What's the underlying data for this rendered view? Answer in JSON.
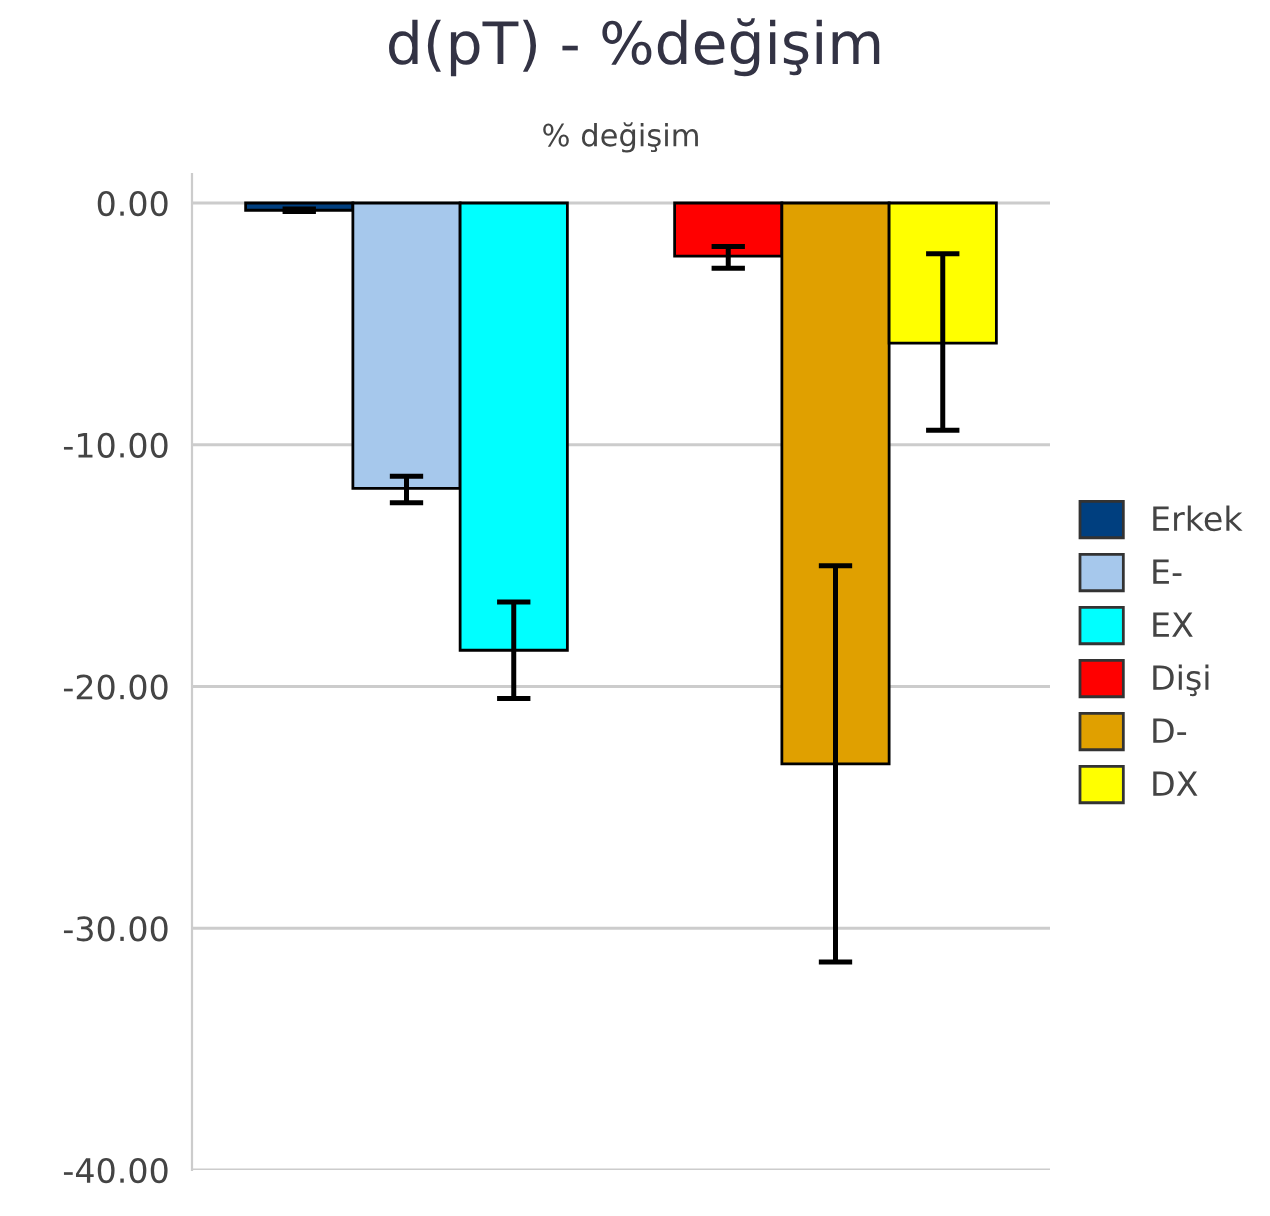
{
  "chart_data": {
    "type": "bar",
    "title": "d(pT) - %değişim",
    "subtitle": "% değişim",
    "categories": [
      null,
      null
    ],
    "series": [
      {
        "name": "Erkek",
        "color": "#003f7f",
        "values": [
          -0.3,
          null
        ],
        "errors": [
          [
            -0.35,
            -0.25
          ],
          null
        ]
      },
      {
        "name": "E-",
        "color": "#a6c8ec",
        "values": [
          -11.8,
          null
        ],
        "errors": [
          [
            -12.4,
            -11.3
          ],
          null
        ]
      },
      {
        "name": "EX",
        "color": "#00ffff",
        "values": [
          -18.5,
          null
        ],
        "errors": [
          [
            -20.5,
            -16.5
          ],
          null
        ]
      },
      {
        "name": "Dişi",
        "color": "#ff0000",
        "values": [
          null,
          -2.2
        ],
        "errors": [
          null,
          [
            -2.7,
            -1.8
          ]
        ]
      },
      {
        "name": "D-",
        "color": "#e0a000",
        "values": [
          null,
          -23.2
        ],
        "errors": [
          null,
          [
            -31.4,
            -15.0
          ]
        ]
      },
      {
        "name": "DX",
        "color": "#ffff00",
        "values": [
          null,
          -5.8
        ],
        "errors": [
          null,
          [
            -9.4,
            -2.1
          ]
        ]
      }
    ],
    "ylim": [
      -40,
      1.2
    ],
    "yticks": [
      {
        "value": -40,
        "label": "-40.00"
      },
      {
        "value": -30,
        "label": "-30.00"
      },
      {
        "value": -20,
        "label": "-20.00"
      },
      {
        "value": -10,
        "label": "-10.00"
      },
      {
        "value": 0,
        "label": "0.00"
      }
    ],
    "grid": "y",
    "legend": "right",
    "tick_labels": "y"
  }
}
